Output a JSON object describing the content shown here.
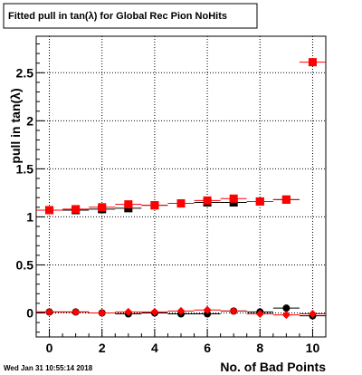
{
  "chart_data": {
    "type": "scatter",
    "title": "Fitted pull in tan(λ) for Global Rec Pion NoHits",
    "xlabel": "No. of Bad Points",
    "ylabel": "pull in tan(λ)",
    "xlim": [
      -0.5,
      10.5
    ],
    "ylim": [
      -0.25,
      2.88
    ],
    "x_ticks": [
      0,
      2,
      4,
      6,
      8,
      10
    ],
    "y_ticks": [
      0,
      0.5,
      1,
      1.5,
      2,
      2.5
    ],
    "x_tick_labels": [
      "0",
      "2",
      "4",
      "6",
      "8",
      "10"
    ],
    "y_tick_labels": [
      "0",
      "0.5",
      "1",
      "1.5",
      "2",
      "2.5"
    ],
    "grid": true,
    "footer": "Wed Jan 31 10:55:14 2018",
    "series": [
      {
        "marker": "square",
        "color": "#000000",
        "x": [
          0,
          1,
          2,
          3,
          4,
          5,
          6,
          7,
          8,
          9
        ],
        "y": [
          1.07,
          1.07,
          1.08,
          1.09,
          1.12,
          1.14,
          1.15,
          1.15,
          1.16,
          1.18
        ]
      },
      {
        "marker": "square",
        "color": "#ff0000",
        "x": [
          0,
          1,
          2,
          3,
          4,
          5,
          6,
          7,
          8,
          9,
          10
        ],
        "y": [
          1.07,
          1.08,
          1.1,
          1.13,
          1.12,
          1.14,
          1.17,
          1.19,
          1.16,
          1.18,
          2.61
        ]
      },
      {
        "marker": "circle",
        "color": "#000000",
        "x": [
          0,
          1,
          2,
          3,
          4,
          5,
          6,
          7,
          8,
          9,
          10
        ],
        "y": [
          0.01,
          0.01,
          0.0,
          -0.01,
          0.0,
          -0.01,
          -0.01,
          0.02,
          0.01,
          0.05,
          -0.03
        ]
      },
      {
        "marker": "diamond",
        "color": "#ff0000",
        "x": [
          0,
          1,
          2,
          3,
          4,
          5,
          6,
          7,
          8,
          9,
          10
        ],
        "y": [
          0.01,
          0.01,
          0.0,
          0.01,
          0.01,
          0.02,
          0.03,
          0.02,
          -0.01,
          -0.02,
          -0.01
        ]
      }
    ]
  }
}
